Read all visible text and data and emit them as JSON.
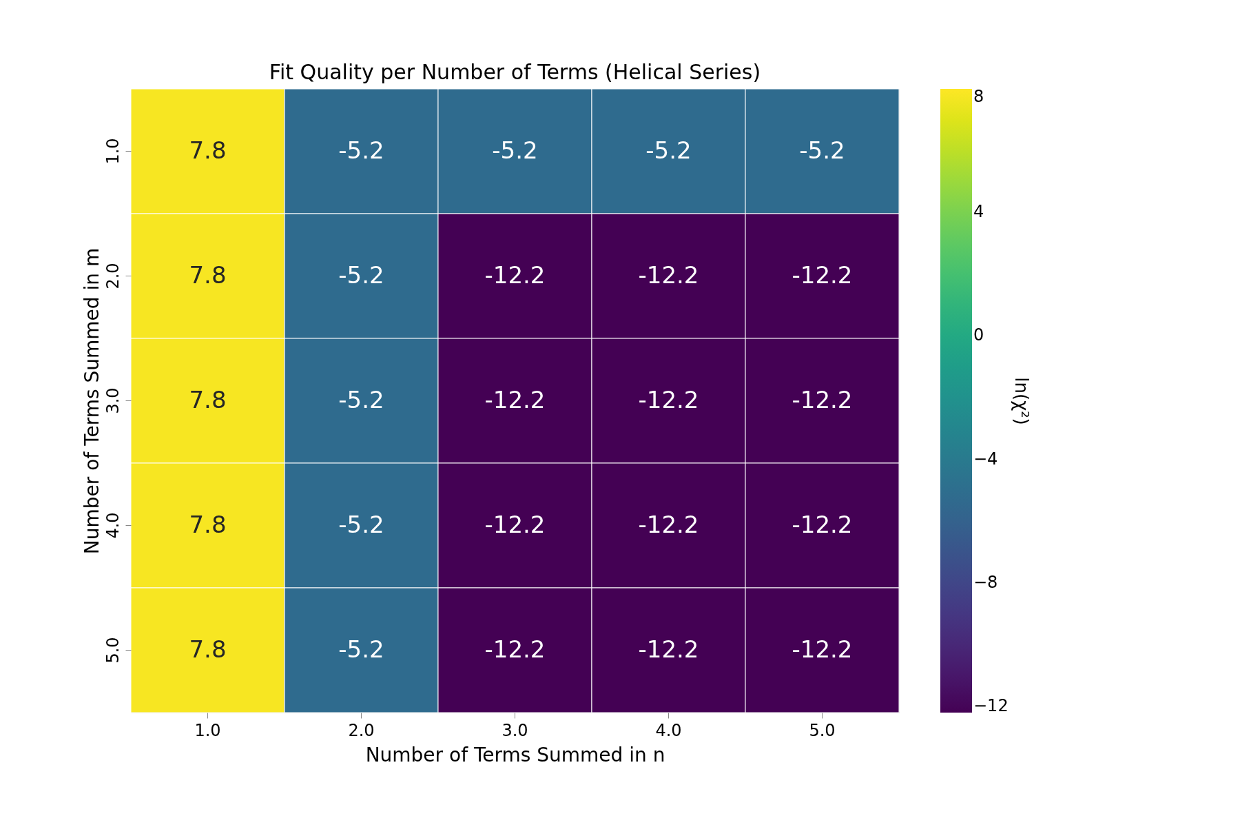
{
  "chart_data": {
    "type": "heatmap",
    "title": "Fit Quality per Number of Terms (Helical Series)",
    "xlabel": "Number of Terms Summed in n",
    "ylabel": "Number of Terms Summed in m",
    "clabel": "ln(χ²)",
    "categories": [
      "1.0",
      "2.0",
      "3.0",
      "4.0",
      "5.0"
    ],
    "y_categories": [
      "1.0",
      "2.0",
      "3.0",
      "4.0",
      "5.0"
    ],
    "cells": [
      [
        7.8,
        -5.2,
        -5.2,
        -5.2,
        -5.2
      ],
      [
        7.8,
        -5.2,
        -12.2,
        -12.2,
        -12.2
      ],
      [
        7.8,
        -5.2,
        -12.2,
        -12.2,
        -12.2
      ],
      [
        7.8,
        -5.2,
        -12.2,
        -12.2,
        -12.2
      ],
      [
        7.8,
        -5.2,
        -12.2,
        -12.2,
        -12.2
      ]
    ],
    "clim": [
      -12.2,
      8
    ],
    "cticks": [
      -12,
      -8,
      -4,
      0,
      4,
      8
    ],
    "data_labels": true
  }
}
